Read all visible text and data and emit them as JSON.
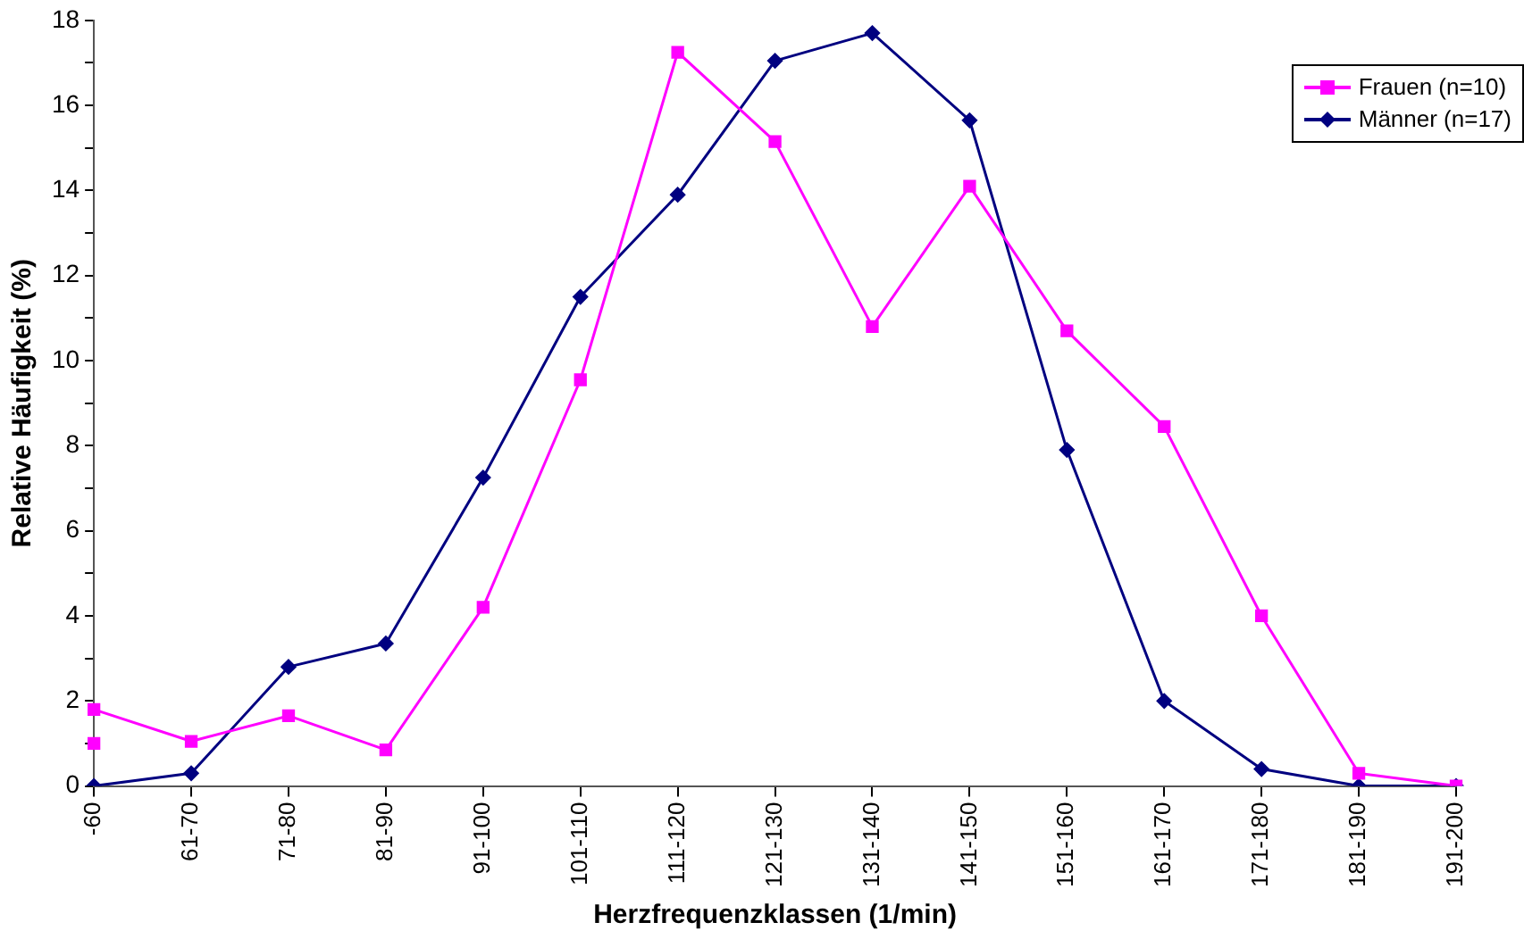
{
  "chart_data": {
    "type": "line",
    "xlabel": "Herzfrequenzklassen (1/min)",
    "ylabel": "Relative Häufigkeit (%)",
    "categories": [
      "-60",
      "61-70",
      "71-80",
      "81-90",
      "91-100",
      "101-110",
      "111-120",
      "121-130",
      "131-140",
      "141-150",
      "151-160",
      "161-170",
      "171-180",
      "181-190",
      "191-200"
    ],
    "series": [
      {
        "name": "Frauen (n=10)",
        "color": "#ff00ff",
        "marker": "square",
        "values": [
          1.8,
          1.05,
          1.65,
          0.85,
          4.2,
          9.55,
          17.25,
          15.15,
          10.8,
          14.1,
          10.7,
          8.45,
          4.0,
          0.3,
          0
        ]
      },
      {
        "name": "Männer (n=17)",
        "color": "#000080",
        "marker": "diamond",
        "values": [
          0,
          0.3,
          2.8,
          3.35,
          7.25,
          11.5,
          13.9,
          17.05,
          17.7,
          15.65,
          7.9,
          2.0,
          0.4,
          0,
          0
        ]
      },
      {
        "type": "scatter",
        "color": "#ff00ff",
        "marker": "square",
        "x": [
          "-60"
        ],
        "values": [
          1.0
        ]
      }
    ],
    "ylim": [
      0,
      18
    ],
    "yticks": [
      0,
      {
        "value": 1,
        "label": null
      },
      2,
      {
        "value": 3,
        "label": null
      },
      4,
      {
        "value": 5,
        "label": null
      },
      6,
      {
        "value": 7,
        "label": null
      },
      8,
      {
        "value": 9,
        "label": null
      },
      10,
      {
        "value": 11,
        "label": null
      },
      12,
      {
        "value": 13,
        "label": null
      },
      14,
      {
        "value": 15,
        "label": null
      },
      16,
      {
        "value": 17,
        "label": null
      },
      18
    ],
    "grid": false,
    "legend": "top right"
  }
}
